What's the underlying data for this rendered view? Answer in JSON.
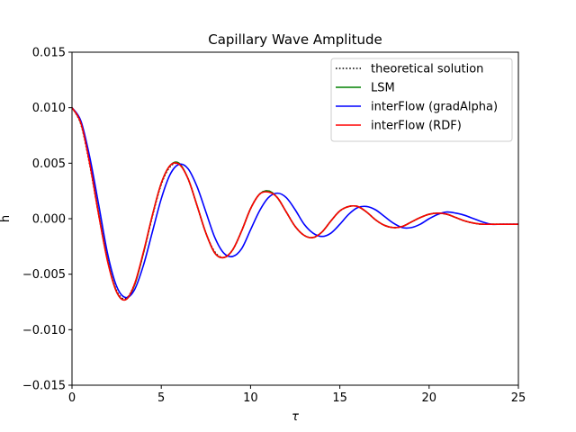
{
  "chart_data": {
    "type": "line",
    "title": "Capillary Wave Amplitude",
    "xlabel": "τ",
    "ylabel": "h",
    "xlim": [
      0,
      25
    ],
    "ylim": [
      -0.015,
      0.015
    ],
    "xticks": [
      0,
      5,
      10,
      15,
      20,
      25
    ],
    "xtick_labels": [
      "0",
      "5",
      "10",
      "15",
      "20",
      "25"
    ],
    "yticks": [
      -0.015,
      -0.01,
      -0.005,
      0.0,
      0.005,
      0.01,
      0.015
    ],
    "ytick_labels": [
      "−0.015",
      "−0.010",
      "−0.005",
      "0.000",
      "0.005",
      "0.010",
      "0.015"
    ],
    "grid": false,
    "legend_position": "top-right",
    "series": [
      {
        "name": "theoretical solution",
        "color": "#000000",
        "style": "dotted",
        "x": [
          0,
          0.5,
          1,
          1.5,
          2,
          2.5,
          3,
          3.5,
          4,
          4.5,
          5,
          5.5,
          6,
          6.5,
          7,
          7.5,
          8,
          8.5,
          9,
          9.5,
          10,
          10.5,
          11,
          11.5,
          12,
          12.5,
          13,
          13.5,
          14,
          14.5,
          15,
          15.5,
          16,
          16.5,
          17,
          17.5,
          18,
          18.5,
          19,
          19.5,
          20,
          20.5,
          21,
          21.5,
          22,
          22.5,
          23,
          23.5,
          24,
          24.5,
          25
        ],
        "y": [
          0.01,
          0.0085,
          0.0048,
          0.0003,
          -0.0038,
          -0.0065,
          -0.0072,
          -0.0059,
          -0.0031,
          0.0002,
          0.0031,
          0.0047,
          0.0049,
          0.0036,
          0.0012,
          -0.0013,
          -0.003,
          -0.0035,
          -0.0028,
          -0.0011,
          0.0009,
          0.0022,
          0.0025,
          0.0019,
          0.0006,
          -0.0007,
          -0.0015,
          -0.0017,
          -0.0012,
          -0.0002,
          0.0007,
          0.0011,
          0.0011,
          0.0006,
          -0.0001,
          -0.0006,
          -0.0008,
          -0.0007,
          -0.0003,
          0.0001,
          0.0004,
          0.0005,
          0.0004,
          0.0001,
          -0.0002,
          -0.0004,
          -0.0005,
          -0.0005,
          -0.0005,
          -0.0005,
          -0.0005
        ]
      },
      {
        "name": "LSM",
        "color": "#008000",
        "style": "solid",
        "x": [
          0,
          0.5,
          1,
          1.5,
          2,
          2.5,
          3,
          3.5,
          4,
          4.5,
          5,
          5.5,
          6,
          6.5,
          7,
          7.5,
          8,
          8.5,
          9,
          9.5,
          10,
          10.5,
          11,
          11.5,
          12,
          12.5,
          13,
          13.5,
          14,
          14.5,
          15,
          15.5,
          16,
          16.5,
          17,
          17.5,
          18,
          18.5,
          19,
          19.5,
          20,
          20.5,
          21,
          21.5,
          22,
          22.5,
          23,
          23.5,
          24,
          24.5,
          25
        ],
        "y": [
          0.01,
          0.0086,
          0.005,
          0.0004,
          -0.0038,
          -0.0066,
          -0.0073,
          -0.006,
          -0.0031,
          0.0003,
          0.0032,
          0.0048,
          0.005,
          0.0036,
          0.0012,
          -0.0013,
          -0.0031,
          -0.0035,
          -0.0028,
          -0.0011,
          0.0009,
          0.0022,
          0.0025,
          0.0019,
          0.0006,
          -0.0007,
          -0.0015,
          -0.0017,
          -0.0012,
          -0.0002,
          0.0007,
          0.0011,
          0.0011,
          0.0006,
          -0.0001,
          -0.0006,
          -0.0008,
          -0.0007,
          -0.0003,
          0.0001,
          0.0004,
          0.0005,
          0.0004,
          0.0001,
          -0.0002,
          -0.0004,
          -0.0005,
          -0.0005,
          -0.0005,
          -0.0005,
          -0.0005
        ]
      },
      {
        "name": "interFlow (gradAlpha)",
        "color": "#0000ff",
        "style": "solid",
        "x": [
          0,
          0.5,
          1,
          1.5,
          2,
          2.5,
          3,
          3.5,
          4,
          4.5,
          5,
          5.5,
          6,
          6.5,
          7,
          7.5,
          8,
          8.5,
          9,
          9.5,
          10,
          10.5,
          11,
          11.5,
          12,
          12.5,
          13,
          13.5,
          14,
          14.5,
          15,
          15.5,
          16,
          16.5,
          17,
          17.5,
          18,
          18.5,
          19,
          19.5,
          20,
          20.5,
          21,
          21.5,
          22,
          22.5,
          23,
          23.5,
          24,
          24.5,
          25
        ],
        "y": [
          0.01,
          0.0088,
          0.0055,
          0.0012,
          -0.0032,
          -0.0061,
          -0.0071,
          -0.0064,
          -0.0042,
          -0.0012,
          0.0018,
          0.004,
          0.0049,
          0.0045,
          0.0029,
          0.0006,
          -0.0017,
          -0.0031,
          -0.0034,
          -0.0027,
          -0.001,
          0.0007,
          0.0019,
          0.0023,
          0.0019,
          0.0008,
          -0.0005,
          -0.0013,
          -0.0016,
          -0.0013,
          -0.0005,
          0.0004,
          0.001,
          0.0011,
          0.0008,
          0.0002,
          -0.0004,
          -0.0008,
          -0.0008,
          -0.0005,
          0.0,
          0.0004,
          0.0006,
          0.0005,
          0.0003,
          0.0,
          -0.0003,
          -0.0005,
          -0.0005,
          -0.0005,
          -0.0005
        ]
      },
      {
        "name": "interFlow (RDF)",
        "color": "#ff0000",
        "style": "solid",
        "x": [
          0,
          0.5,
          1,
          1.5,
          2,
          2.5,
          3,
          3.5,
          4,
          4.5,
          5,
          5.5,
          6,
          6.5,
          7,
          7.5,
          8,
          8.5,
          9,
          9.5,
          10,
          10.5,
          11,
          11.5,
          12,
          12.5,
          13,
          13.5,
          14,
          14.5,
          15,
          15.5,
          16,
          16.5,
          17,
          17.5,
          18,
          18.5,
          19,
          19.5,
          20,
          20.5,
          21,
          21.5,
          22,
          22.5,
          23,
          23.5,
          24,
          24.5,
          25
        ],
        "y": [
          0.01,
          0.0086,
          0.0049,
          0.0003,
          -0.0039,
          -0.0066,
          -0.0073,
          -0.0059,
          -0.003,
          0.0003,
          0.0032,
          0.0048,
          0.0049,
          0.0036,
          0.0012,
          -0.0013,
          -0.0031,
          -0.0035,
          -0.0028,
          -0.0011,
          0.0009,
          0.0022,
          0.0024,
          0.0019,
          0.0006,
          -0.0007,
          -0.0015,
          -0.0017,
          -0.0012,
          -0.0002,
          0.0007,
          0.0011,
          0.0011,
          0.0006,
          -0.0001,
          -0.0006,
          -0.0008,
          -0.0007,
          -0.0003,
          0.0001,
          0.0004,
          0.0005,
          0.0004,
          0.0001,
          -0.0002,
          -0.0004,
          -0.0005,
          -0.0005,
          -0.0005,
          -0.0005,
          -0.0005
        ]
      }
    ]
  }
}
